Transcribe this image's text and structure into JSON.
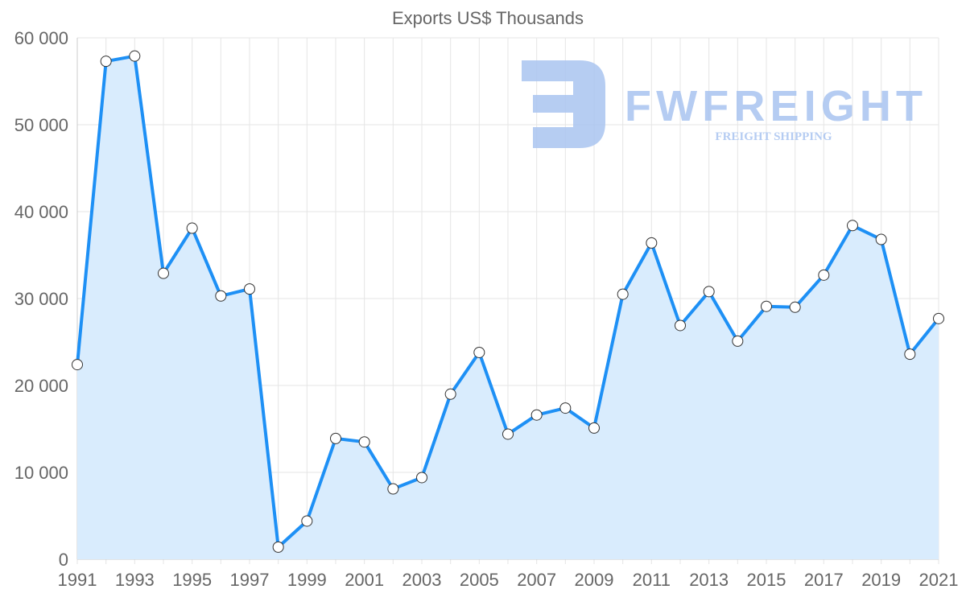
{
  "chart_data": {
    "type": "line",
    "title": "Exports US$ Thousands",
    "xlabel": "",
    "ylabel": "",
    "x": [
      1991,
      1992,
      1993,
      1994,
      1995,
      1996,
      1997,
      1998,
      1999,
      2000,
      2001,
      2002,
      2003,
      2004,
      2005,
      2006,
      2007,
      2008,
      2009,
      2010,
      2011,
      2012,
      2013,
      2014,
      2015,
      2016,
      2017,
      2018,
      2019,
      2020,
      2021
    ],
    "series": [
      {
        "name": "Exports US$ Thousands",
        "values": [
          22400,
          57300,
          57900,
          32900,
          38100,
          30300,
          31100,
          1400,
          4400,
          13900,
          13500,
          8100,
          9400,
          19000,
          23800,
          14400,
          16600,
          17400,
          15100,
          30500,
          36400,
          26900,
          30800,
          25100,
          29100,
          29000,
          32700,
          38400,
          36800,
          23600,
          27700
        ],
        "color": "#1e90f5",
        "fill": "#d9ecfd"
      }
    ],
    "ylim": [
      0,
      60000
    ],
    "yticks": [
      0,
      10000,
      20000,
      30000,
      40000,
      50000,
      60000
    ],
    "ytick_labels": [
      "0",
      "10 000",
      "20 000",
      "30 000",
      "40 000",
      "50 000",
      "60 000"
    ],
    "xtick_labels": [
      "1991",
      "1993",
      "1995",
      "1997",
      "1999",
      "2001",
      "2003",
      "2005",
      "2007",
      "2009",
      "2011",
      "2013",
      "2015",
      "2017",
      "2019",
      "2021"
    ],
    "grid": true,
    "legend": "none"
  },
  "watermark": {
    "brand": "FWFREIGHT",
    "tagline": "FREIGHT SHIPPING",
    "color": "#a9c4f0"
  }
}
